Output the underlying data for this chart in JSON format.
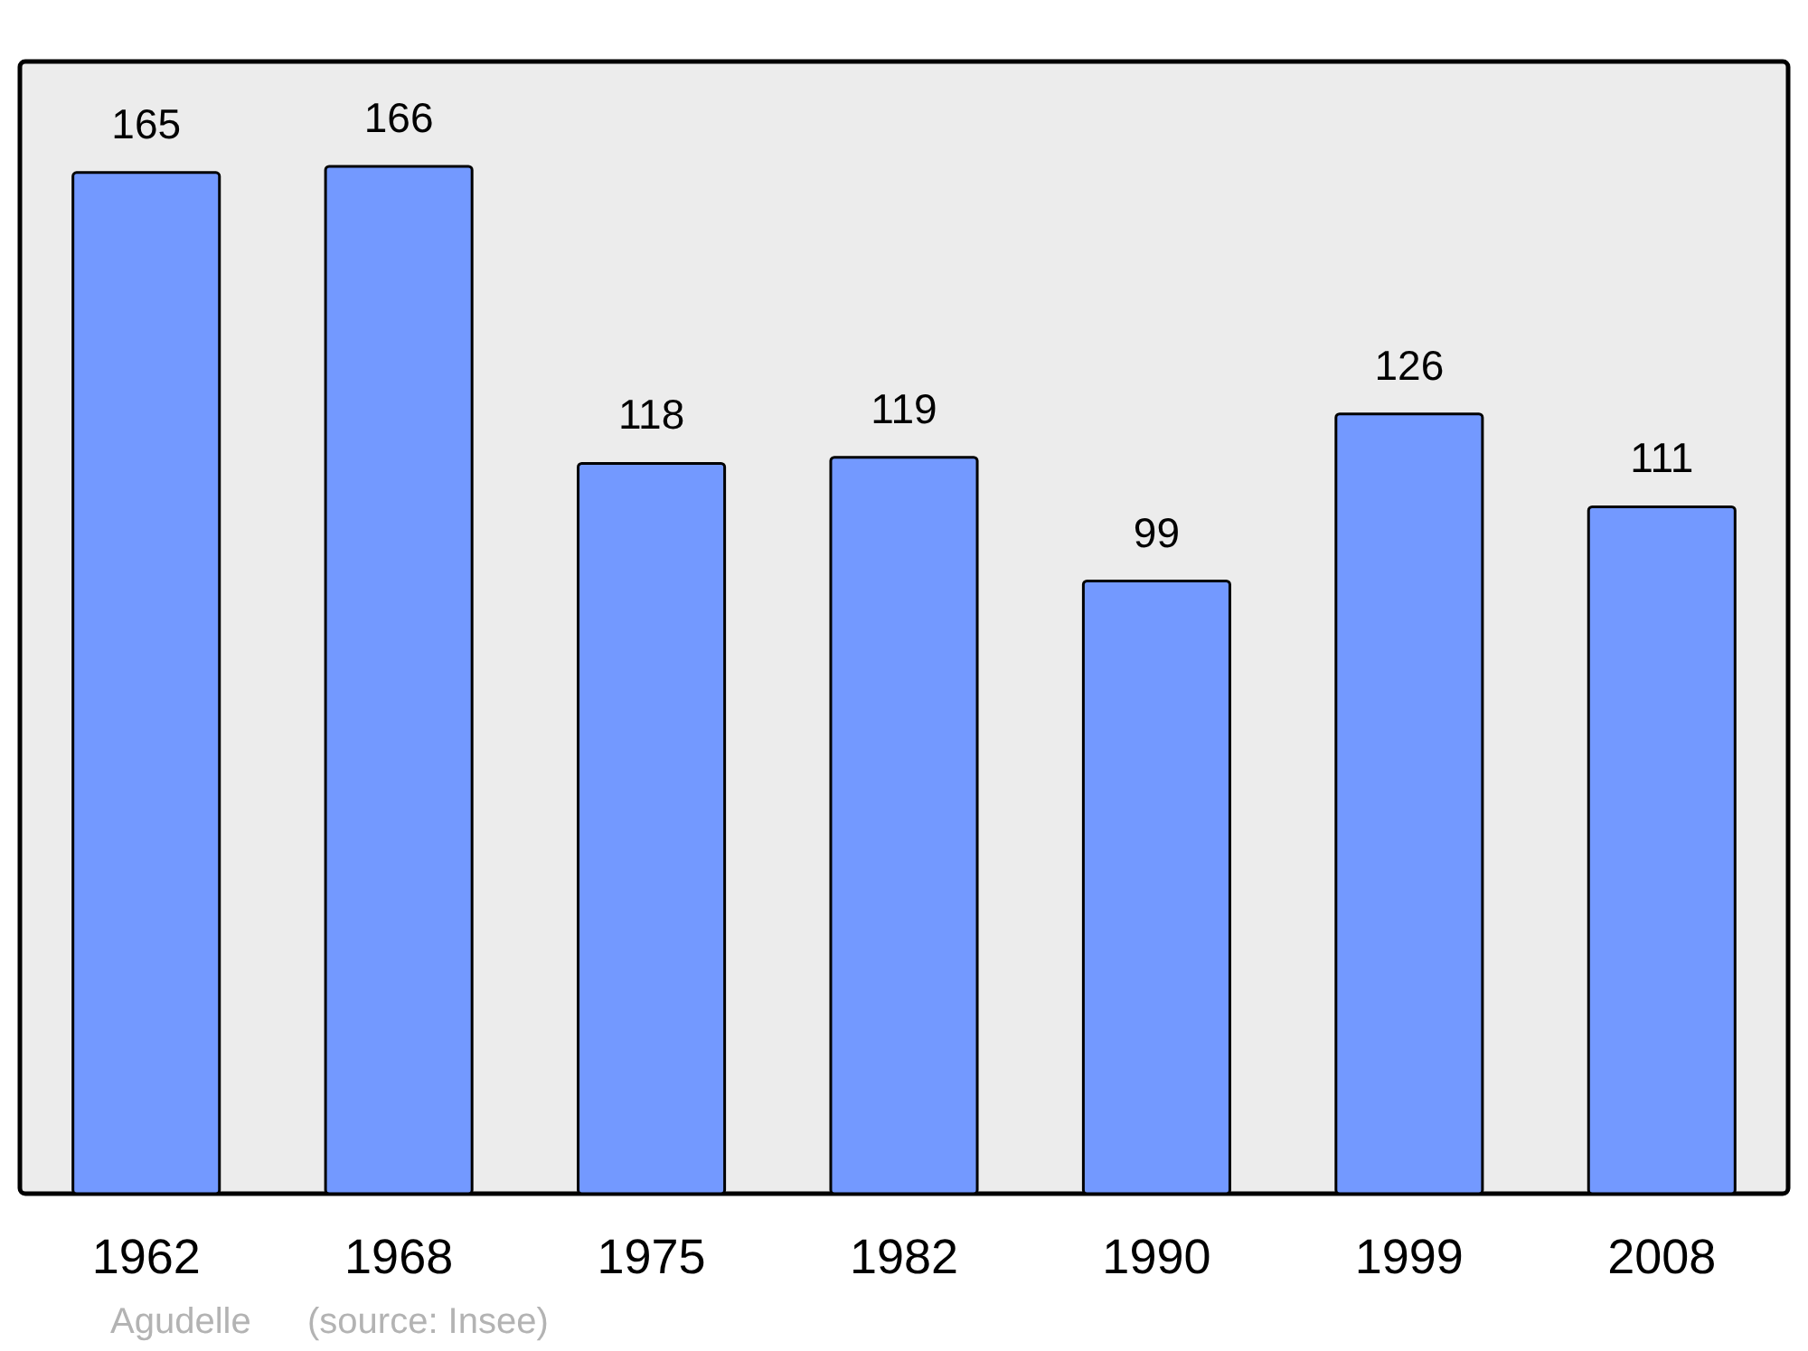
{
  "chart_data": {
    "type": "bar",
    "categories": [
      "1962",
      "1968",
      "1975",
      "1982",
      "1990",
      "1999",
      "2008"
    ],
    "values": [
      165,
      166,
      118,
      119,
      99,
      126,
      111
    ],
    "color": "#7399ff",
    "data_labels": true,
    "annotations": [
      "Agudelle",
      "(source: Insee)"
    ]
  }
}
